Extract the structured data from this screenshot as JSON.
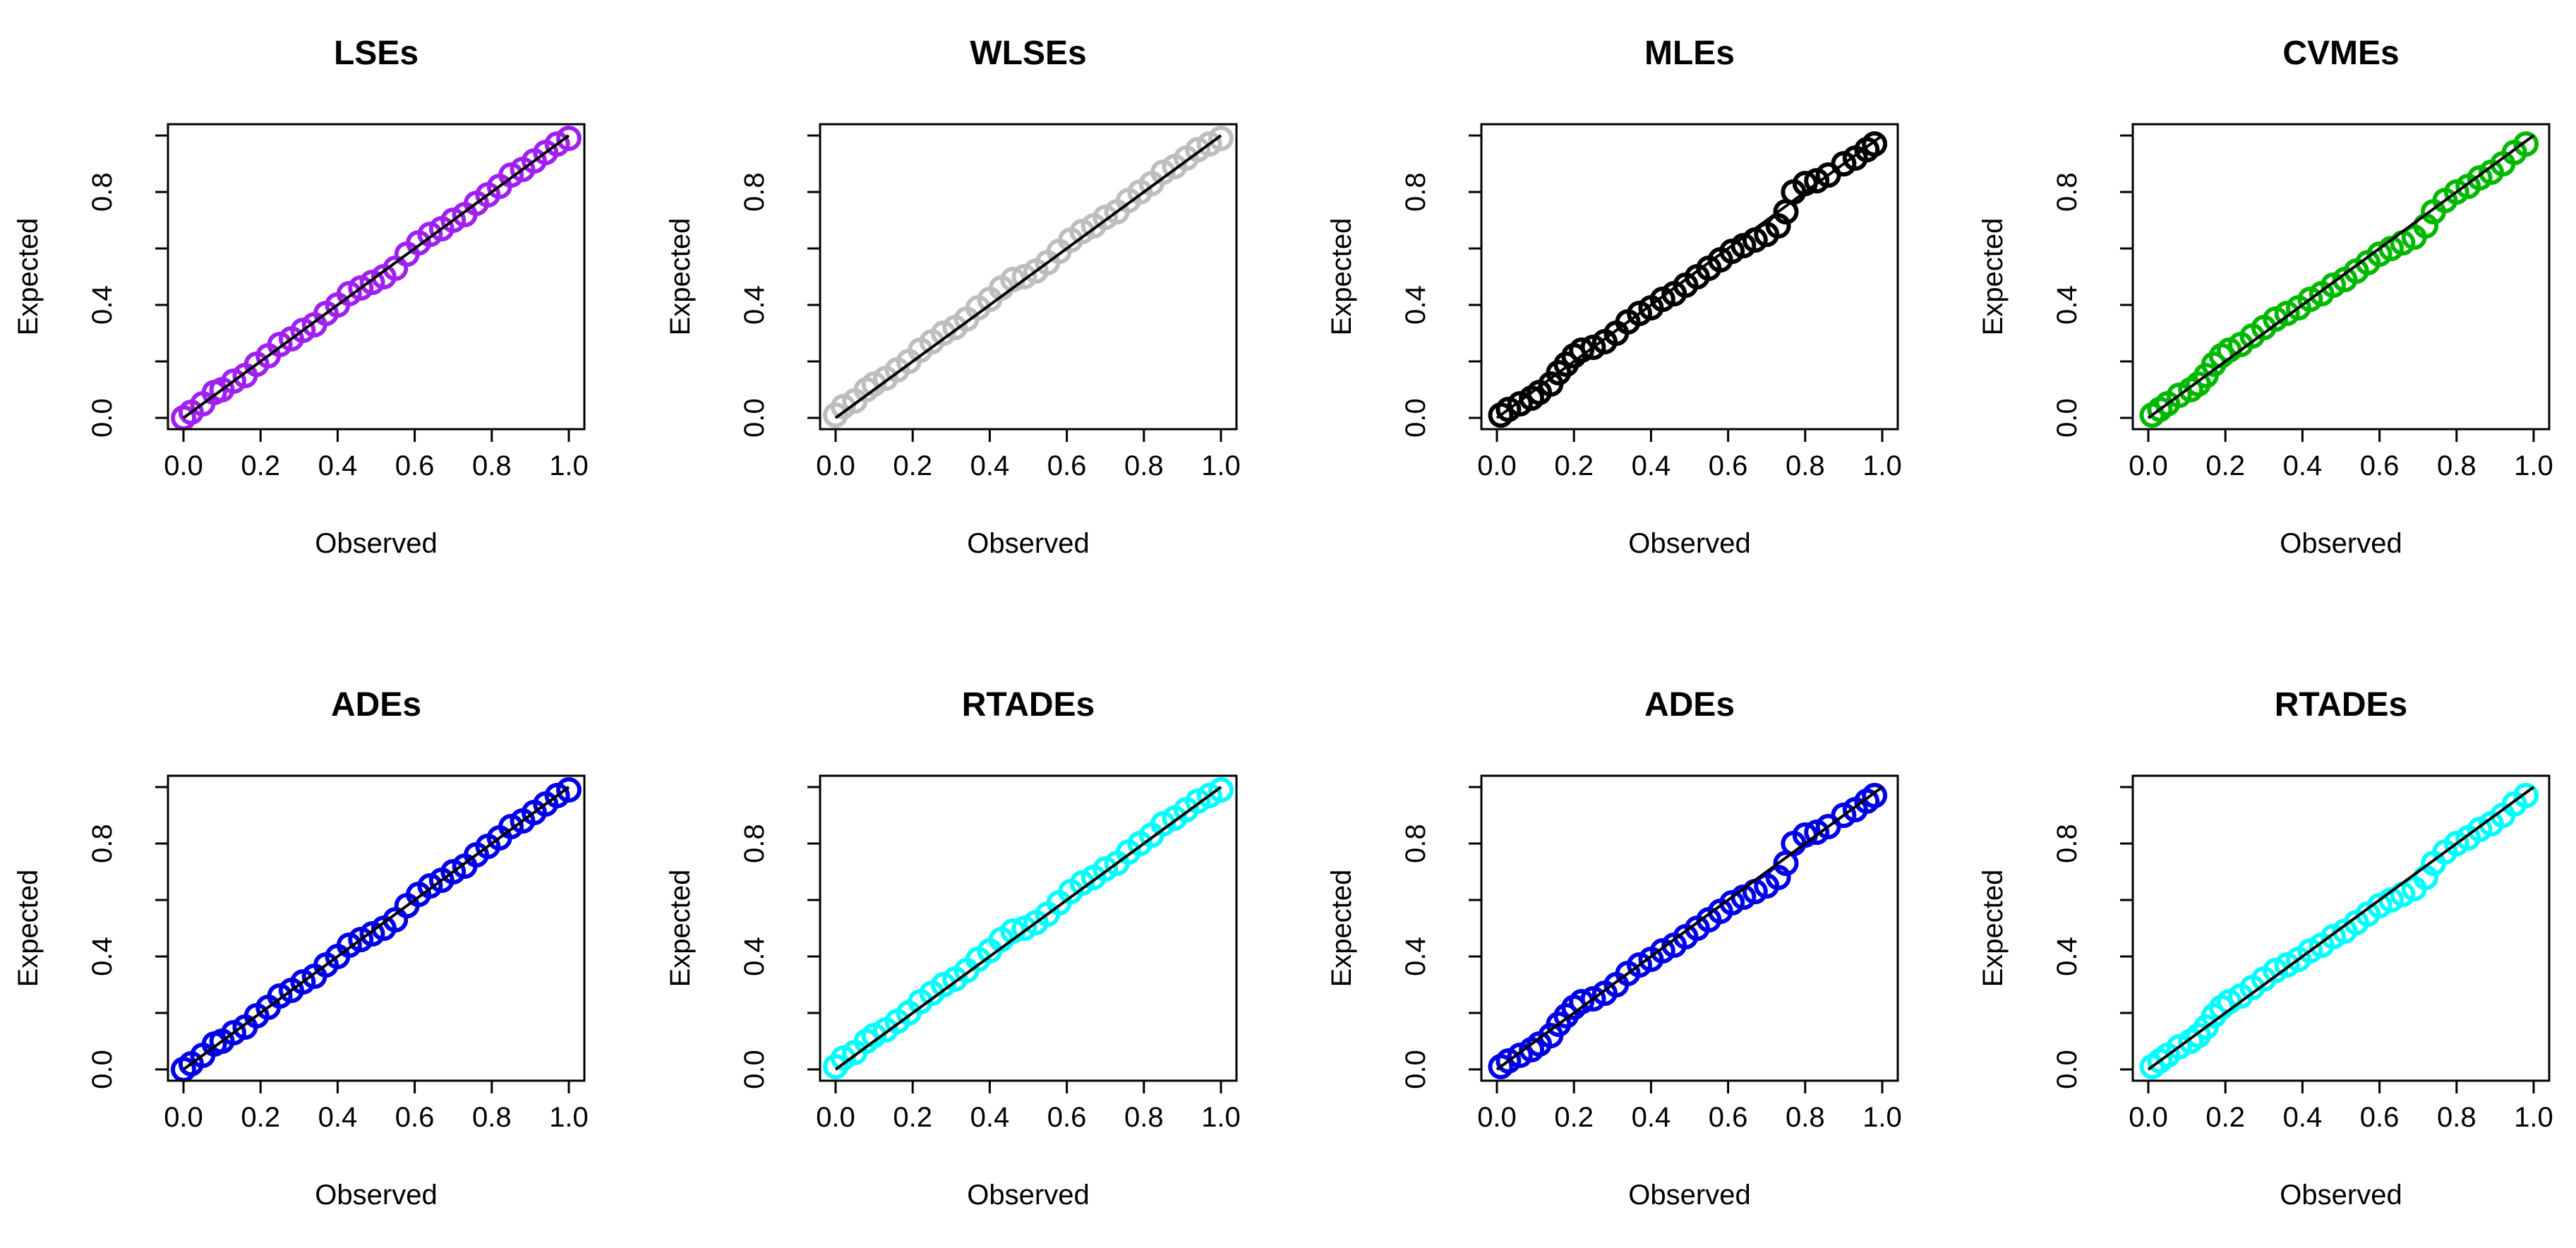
{
  "chart_data": [
    {
      "type": "scatter",
      "title": "LSEs",
      "xlabel": "Observed",
      "ylabel": "Expected",
      "xlim": [
        0,
        1
      ],
      "ylim": [
        0,
        1
      ],
      "xticks": [
        "0.0",
        "0.2",
        "0.4",
        "0.6",
        "0.8",
        "1.0"
      ],
      "yticks": [
        "0.0",
        "0.4",
        "0.8"
      ],
      "marker": "circle-open",
      "color": "#a020f0",
      "reference_line": {
        "from": [
          0,
          0
        ],
        "to": [
          1,
          1
        ]
      },
      "series": [
        {
          "name": "LSEs",
          "x": [
            0.0,
            0.02,
            0.05,
            0.08,
            0.1,
            0.13,
            0.16,
            0.19,
            0.22,
            0.25,
            0.28,
            0.31,
            0.34,
            0.37,
            0.4,
            0.43,
            0.46,
            0.49,
            0.52,
            0.55,
            0.58,
            0.61,
            0.64,
            0.67,
            0.7,
            0.73,
            0.76,
            0.79,
            0.82,
            0.85,
            0.88,
            0.91,
            0.94,
            0.97,
            1.0
          ],
          "y": [
            0.0,
            0.02,
            0.05,
            0.09,
            0.1,
            0.13,
            0.15,
            0.19,
            0.22,
            0.26,
            0.28,
            0.31,
            0.33,
            0.37,
            0.4,
            0.44,
            0.46,
            0.48,
            0.5,
            0.53,
            0.58,
            0.62,
            0.65,
            0.67,
            0.7,
            0.72,
            0.76,
            0.79,
            0.82,
            0.86,
            0.88,
            0.91,
            0.94,
            0.97,
            0.99
          ]
        }
      ]
    },
    {
      "type": "scatter",
      "title": "WLSEs",
      "xlabel": "Observed",
      "ylabel": "Expected",
      "xlim": [
        0,
        1
      ],
      "ylim": [
        0,
        1
      ],
      "xticks": [
        "0.0",
        "0.2",
        "0.4",
        "0.6",
        "0.8",
        "1.0"
      ],
      "yticks": [
        "0.0",
        "0.4",
        "0.8"
      ],
      "marker": "circle-open",
      "color": "#bebebe",
      "reference_line": {
        "from": [
          0,
          0
        ],
        "to": [
          1,
          1
        ]
      },
      "series": [
        {
          "name": "WLSEs",
          "x": [
            0.0,
            0.02,
            0.05,
            0.08,
            0.1,
            0.13,
            0.16,
            0.19,
            0.22,
            0.25,
            0.28,
            0.31,
            0.34,
            0.37,
            0.4,
            0.43,
            0.46,
            0.49,
            0.52,
            0.55,
            0.58,
            0.61,
            0.64,
            0.67,
            0.7,
            0.73,
            0.76,
            0.79,
            0.82,
            0.85,
            0.88,
            0.91,
            0.94,
            0.97,
            1.0
          ],
          "y": [
            0.01,
            0.04,
            0.06,
            0.1,
            0.12,
            0.14,
            0.17,
            0.2,
            0.24,
            0.27,
            0.3,
            0.32,
            0.35,
            0.39,
            0.42,
            0.46,
            0.49,
            0.5,
            0.52,
            0.55,
            0.59,
            0.63,
            0.66,
            0.68,
            0.71,
            0.73,
            0.77,
            0.8,
            0.83,
            0.87,
            0.89,
            0.92,
            0.95,
            0.97,
            0.99
          ]
        }
      ]
    },
    {
      "type": "scatter",
      "title": "MLEs",
      "xlabel": "Observed",
      "ylabel": "Expected",
      "xlim": [
        0,
        1
      ],
      "ylim": [
        0,
        1
      ],
      "xticks": [
        "0.0",
        "0.2",
        "0.4",
        "0.6",
        "0.8",
        "1.0"
      ],
      "yticks": [
        "0.0",
        "0.4",
        "0.8"
      ],
      "marker": "circle-open",
      "color": "#000000",
      "reference_line": {
        "from": [
          0,
          0
        ],
        "to": [
          1,
          1
        ]
      },
      "series": [
        {
          "name": "MLEs",
          "x": [
            0.01,
            0.03,
            0.06,
            0.09,
            0.11,
            0.14,
            0.16,
            0.18,
            0.2,
            0.22,
            0.25,
            0.28,
            0.31,
            0.34,
            0.37,
            0.4,
            0.43,
            0.46,
            0.49,
            0.52,
            0.55,
            0.58,
            0.61,
            0.64,
            0.67,
            0.7,
            0.73,
            0.75,
            0.77,
            0.8,
            0.83,
            0.86,
            0.9,
            0.93,
            0.96,
            0.98
          ],
          "y": [
            0.01,
            0.03,
            0.05,
            0.07,
            0.09,
            0.12,
            0.16,
            0.19,
            0.22,
            0.24,
            0.25,
            0.27,
            0.3,
            0.34,
            0.37,
            0.39,
            0.42,
            0.44,
            0.47,
            0.5,
            0.53,
            0.56,
            0.59,
            0.61,
            0.63,
            0.65,
            0.68,
            0.73,
            0.8,
            0.83,
            0.84,
            0.86,
            0.9,
            0.92,
            0.95,
            0.97
          ]
        }
      ]
    },
    {
      "type": "scatter",
      "title": "CVMEs",
      "xlabel": "Observed",
      "ylabel": "Expected",
      "xlim": [
        0,
        1
      ],
      "ylim": [
        0,
        1
      ],
      "xticks": [
        "0.0",
        "0.2",
        "0.4",
        "0.6",
        "0.8",
        "1.0"
      ],
      "yticks": [
        "0.0",
        "0.4",
        "0.8"
      ],
      "marker": "circle-open",
      "color": "#00b800",
      "reference_line": {
        "from": [
          0,
          0
        ],
        "to": [
          1,
          1
        ]
      },
      "series": [
        {
          "name": "CVMEs",
          "x": [
            0.01,
            0.03,
            0.05,
            0.08,
            0.11,
            0.13,
            0.15,
            0.17,
            0.19,
            0.21,
            0.24,
            0.27,
            0.3,
            0.33,
            0.36,
            0.39,
            0.42,
            0.45,
            0.48,
            0.51,
            0.54,
            0.57,
            0.6,
            0.63,
            0.66,
            0.69,
            0.72,
            0.74,
            0.77,
            0.8,
            0.83,
            0.86,
            0.89,
            0.92,
            0.95,
            0.98
          ],
          "y": [
            0.01,
            0.03,
            0.05,
            0.08,
            0.1,
            0.12,
            0.15,
            0.19,
            0.22,
            0.24,
            0.26,
            0.29,
            0.32,
            0.35,
            0.37,
            0.39,
            0.42,
            0.44,
            0.47,
            0.49,
            0.52,
            0.55,
            0.58,
            0.6,
            0.62,
            0.64,
            0.68,
            0.73,
            0.77,
            0.8,
            0.82,
            0.85,
            0.87,
            0.9,
            0.94,
            0.97
          ]
        }
      ]
    },
    {
      "type": "scatter",
      "title": "ADEs",
      "xlabel": "Observed",
      "ylabel": "Expected",
      "xlim": [
        0,
        1
      ],
      "ylim": [
        0,
        1
      ],
      "xticks": [
        "0.0",
        "0.2",
        "0.4",
        "0.6",
        "0.8",
        "1.0"
      ],
      "yticks": [
        "0.0",
        "0.4",
        "0.8"
      ],
      "marker": "circle-open",
      "color": "#0000e6",
      "reference_line": {
        "from": [
          0,
          0
        ],
        "to": [
          1,
          1
        ]
      },
      "series": [
        {
          "name": "ADEs",
          "x": [
            0.0,
            0.02,
            0.05,
            0.08,
            0.1,
            0.13,
            0.16,
            0.19,
            0.22,
            0.25,
            0.28,
            0.31,
            0.34,
            0.37,
            0.4,
            0.43,
            0.46,
            0.49,
            0.52,
            0.55,
            0.58,
            0.61,
            0.64,
            0.67,
            0.7,
            0.73,
            0.76,
            0.79,
            0.82,
            0.85,
            0.88,
            0.91,
            0.94,
            0.97,
            1.0
          ],
          "y": [
            0.0,
            0.02,
            0.05,
            0.09,
            0.1,
            0.13,
            0.15,
            0.19,
            0.22,
            0.26,
            0.28,
            0.31,
            0.33,
            0.37,
            0.4,
            0.44,
            0.46,
            0.48,
            0.5,
            0.53,
            0.58,
            0.62,
            0.65,
            0.67,
            0.7,
            0.72,
            0.76,
            0.79,
            0.82,
            0.86,
            0.88,
            0.91,
            0.94,
            0.97,
            0.99
          ]
        }
      ]
    },
    {
      "type": "scatter",
      "title": "RTADEs",
      "xlabel": "Observed",
      "ylabel": "Expected",
      "xlim": [
        0,
        1
      ],
      "ylim": [
        0,
        1
      ],
      "xticks": [
        "0.0",
        "0.2",
        "0.4",
        "0.6",
        "0.8",
        "1.0"
      ],
      "yticks": [
        "0.0",
        "0.4",
        "0.8"
      ],
      "marker": "circle-open",
      "color": "#00ffff",
      "reference_line": {
        "from": [
          0,
          0
        ],
        "to": [
          1,
          1
        ]
      },
      "series": [
        {
          "name": "RTADEs",
          "x": [
            0.0,
            0.02,
            0.05,
            0.08,
            0.1,
            0.13,
            0.16,
            0.19,
            0.22,
            0.25,
            0.28,
            0.31,
            0.34,
            0.37,
            0.4,
            0.43,
            0.46,
            0.49,
            0.52,
            0.55,
            0.58,
            0.61,
            0.64,
            0.67,
            0.7,
            0.73,
            0.76,
            0.79,
            0.82,
            0.85,
            0.88,
            0.91,
            0.94,
            0.97,
            1.0
          ],
          "y": [
            0.01,
            0.04,
            0.06,
            0.1,
            0.12,
            0.14,
            0.17,
            0.2,
            0.24,
            0.27,
            0.3,
            0.32,
            0.35,
            0.39,
            0.42,
            0.46,
            0.49,
            0.5,
            0.52,
            0.55,
            0.59,
            0.63,
            0.66,
            0.68,
            0.71,
            0.73,
            0.77,
            0.8,
            0.83,
            0.87,
            0.89,
            0.92,
            0.95,
            0.97,
            0.99
          ]
        }
      ]
    },
    {
      "type": "scatter",
      "title": "ADEs",
      "xlabel": "Observed",
      "ylabel": "Expected",
      "xlim": [
        0,
        1
      ],
      "ylim": [
        0,
        1
      ],
      "xticks": [
        "0.0",
        "0.2",
        "0.4",
        "0.6",
        "0.8",
        "1.0"
      ],
      "yticks": [
        "0.0",
        "0.4",
        "0.8"
      ],
      "marker": "circle-open",
      "color": "#0000e6",
      "reference_line": {
        "from": [
          0,
          0
        ],
        "to": [
          1,
          1
        ]
      },
      "series": [
        {
          "name": "ADEs",
          "x": [
            0.01,
            0.03,
            0.06,
            0.09,
            0.11,
            0.14,
            0.16,
            0.18,
            0.2,
            0.22,
            0.25,
            0.28,
            0.31,
            0.34,
            0.37,
            0.4,
            0.43,
            0.46,
            0.49,
            0.52,
            0.55,
            0.58,
            0.61,
            0.64,
            0.67,
            0.7,
            0.73,
            0.75,
            0.77,
            0.8,
            0.83,
            0.86,
            0.9,
            0.93,
            0.96,
            0.98
          ],
          "y": [
            0.01,
            0.03,
            0.05,
            0.07,
            0.09,
            0.12,
            0.16,
            0.19,
            0.22,
            0.24,
            0.25,
            0.27,
            0.3,
            0.34,
            0.37,
            0.39,
            0.42,
            0.44,
            0.47,
            0.5,
            0.53,
            0.56,
            0.59,
            0.61,
            0.63,
            0.65,
            0.68,
            0.73,
            0.8,
            0.83,
            0.84,
            0.86,
            0.9,
            0.92,
            0.95,
            0.97
          ]
        }
      ]
    },
    {
      "type": "scatter",
      "title": "RTADEs",
      "xlabel": "Observed",
      "ylabel": "Expected",
      "xlim": [
        0,
        1
      ],
      "ylim": [
        0,
        1
      ],
      "xticks": [
        "0.0",
        "0.2",
        "0.4",
        "0.6",
        "0.8",
        "1.0"
      ],
      "yticks": [
        "0.0",
        "0.4",
        "0.8"
      ],
      "marker": "circle-open",
      "color": "#00ffff",
      "reference_line": {
        "from": [
          0,
          0
        ],
        "to": [
          1,
          1
        ]
      },
      "series": [
        {
          "name": "RTADEs",
          "x": [
            0.01,
            0.03,
            0.05,
            0.08,
            0.11,
            0.13,
            0.15,
            0.17,
            0.19,
            0.21,
            0.24,
            0.27,
            0.3,
            0.33,
            0.36,
            0.39,
            0.42,
            0.45,
            0.48,
            0.51,
            0.54,
            0.57,
            0.6,
            0.63,
            0.66,
            0.69,
            0.72,
            0.74,
            0.77,
            0.8,
            0.83,
            0.86,
            0.89,
            0.92,
            0.95,
            0.98
          ],
          "y": [
            0.01,
            0.03,
            0.05,
            0.08,
            0.1,
            0.12,
            0.15,
            0.19,
            0.22,
            0.24,
            0.26,
            0.29,
            0.32,
            0.35,
            0.37,
            0.39,
            0.42,
            0.44,
            0.47,
            0.49,
            0.52,
            0.55,
            0.58,
            0.6,
            0.62,
            0.64,
            0.68,
            0.73,
            0.77,
            0.8,
            0.82,
            0.85,
            0.87,
            0.9,
            0.94,
            0.97
          ]
        }
      ]
    }
  ]
}
